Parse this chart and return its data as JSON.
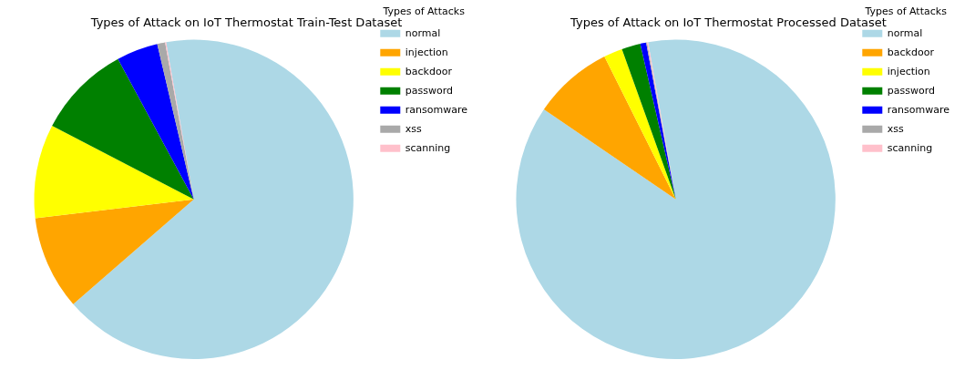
{
  "chart_data": [
    {
      "type": "pie",
      "title": "Types of Attack on IoT Thermostat Train-Test Dataset",
      "legend_title": "Types of Attacks",
      "legend": "top right",
      "categories": [
        "normal",
        "injection",
        "backdoor",
        "password",
        "ransomware",
        "xss",
        "scanning"
      ],
      "values": [
        66.4,
        9.5,
        9.5,
        9.5,
        4.2,
        0.8,
        0.1
      ],
      "colors": [
        "#add8e6",
        "#ffa500",
        "#ffff00",
        "#008000",
        "#0000ff",
        "#a9a9a9",
        "#ffc0cb"
      ]
    },
    {
      "type": "pie",
      "title": "Types of Attack on IoT Thermostat Processed Dataset",
      "legend_title": "Types of Attacks",
      "legend": "top right",
      "categories": [
        "normal",
        "backdoor",
        "injection",
        "password",
        "ransomware",
        "xss",
        "scanning"
      ],
      "values": [
        87.3,
        8.1,
        1.9,
        1.9,
        0.6,
        0.1,
        0.1
      ],
      "colors": [
        "#add8e6",
        "#ffa500",
        "#ffff00",
        "#008000",
        "#0000ff",
        "#a9a9a9",
        "#ffc0cb"
      ]
    }
  ]
}
